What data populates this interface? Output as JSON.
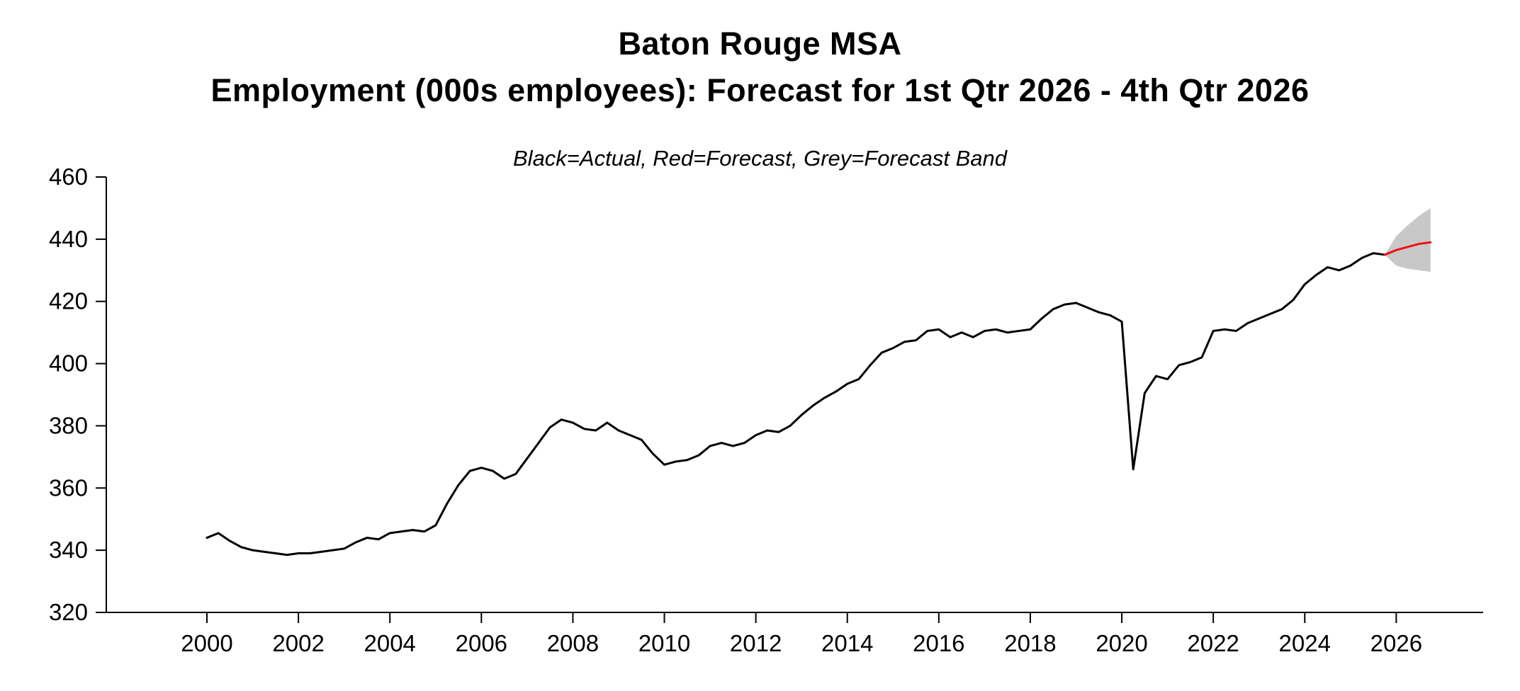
{
  "chart_data": {
    "type": "line",
    "title": "Baton Rouge MSA",
    "subtitle": "Employment (000s employees): Forecast for 1st Qtr 2026 - 4th Qtr 2026",
    "legend_note": "Black=Actual, Red=Forecast, Grey=Forecast Band",
    "xlabel": "",
    "ylabel": "",
    "xlim": [
      1997.8,
      2027.9
    ],
    "ylim": [
      320,
      460
    ],
    "x_ticks": [
      2000,
      2002,
      2004,
      2006,
      2008,
      2010,
      2012,
      2014,
      2016,
      2018,
      2020,
      2022,
      2024,
      2026
    ],
    "y_ticks": [
      320,
      340,
      360,
      380,
      400,
      420,
      440,
      460
    ],
    "grid": false,
    "legend_position": "none",
    "series": [
      {
        "name": "Actual",
        "color": "#000000",
        "x": [
          2000.0,
          2000.25,
          2000.5,
          2000.75,
          2001.0,
          2001.25,
          2001.5,
          2001.75,
          2002.0,
          2002.25,
          2002.5,
          2002.75,
          2003.0,
          2003.25,
          2003.5,
          2003.75,
          2004.0,
          2004.25,
          2004.5,
          2004.75,
          2005.0,
          2005.25,
          2005.5,
          2005.75,
          2006.0,
          2006.25,
          2006.5,
          2006.75,
          2007.0,
          2007.25,
          2007.5,
          2007.75,
          2008.0,
          2008.25,
          2008.5,
          2008.75,
          2009.0,
          2009.25,
          2009.5,
          2009.75,
          2010.0,
          2010.25,
          2010.5,
          2010.75,
          2011.0,
          2011.25,
          2011.5,
          2011.75,
          2012.0,
          2012.25,
          2012.5,
          2012.75,
          2013.0,
          2013.25,
          2013.5,
          2013.75,
          2014.0,
          2014.25,
          2014.5,
          2014.75,
          2015.0,
          2015.25,
          2015.5,
          2015.75,
          2016.0,
          2016.25,
          2016.5,
          2016.75,
          2017.0,
          2017.25,
          2017.5,
          2017.75,
          2018.0,
          2018.25,
          2018.5,
          2018.75,
          2019.0,
          2019.25,
          2019.5,
          2019.75,
          2020.0,
          2020.25,
          2020.5,
          2020.75,
          2021.0,
          2021.25,
          2021.5,
          2021.75,
          2022.0,
          2022.25,
          2022.5,
          2022.75,
          2023.0,
          2023.25,
          2023.5,
          2023.75,
          2024.0,
          2024.25,
          2024.5,
          2024.75,
          2025.0,
          2025.25,
          2025.5,
          2025.75
        ],
        "y": [
          344,
          345.5,
          343,
          341,
          340,
          339.5,
          339,
          338.5,
          339,
          339,
          339.5,
          340,
          340.5,
          342.5,
          344,
          343.5,
          345.5,
          346,
          346.5,
          346,
          348,
          355,
          361,
          365.5,
          366.5,
          365.5,
          363,
          364.5,
          369.5,
          374.5,
          379.5,
          382,
          381,
          379,
          378.5,
          381,
          378.5,
          377,
          375.5,
          371,
          367.5,
          368.5,
          369,
          370.5,
          373.5,
          374.5,
          373.5,
          374.5,
          377,
          378.5,
          378,
          380,
          383.5,
          386.5,
          389,
          391,
          393.5,
          395,
          399.5,
          403.5,
          405,
          407,
          407.5,
          410.5,
          411,
          408.5,
          410,
          408.5,
          410.5,
          411,
          410,
          410.5,
          411,
          414.5,
          417.5,
          419,
          419.5,
          418,
          416.5,
          415.5,
          413.5,
          366,
          390.5,
          396,
          395,
          399.5,
          400.5,
          402,
          410.5,
          411,
          410.5,
          413,
          414.5,
          416,
          417.5,
          420.5,
          425.5,
          428.5,
          431,
          430,
          431.5,
          434,
          435.5,
          435
        ]
      },
      {
        "name": "Forecast",
        "color": "#ee1111",
        "x": [
          2025.75,
          2026.0,
          2026.25,
          2026.5,
          2026.75
        ],
        "y": [
          435,
          436.5,
          437.5,
          438.5,
          439
        ]
      }
    ],
    "band": {
      "name": "Forecast Band",
      "color": "#c8c8c8",
      "x": [
        2025.75,
        2026.0,
        2026.25,
        2026.5,
        2026.75
      ],
      "lower": [
        435,
        431.5,
        430.5,
        430,
        429.5
      ],
      "upper": [
        435,
        441,
        444.5,
        447.5,
        450
      ]
    }
  }
}
